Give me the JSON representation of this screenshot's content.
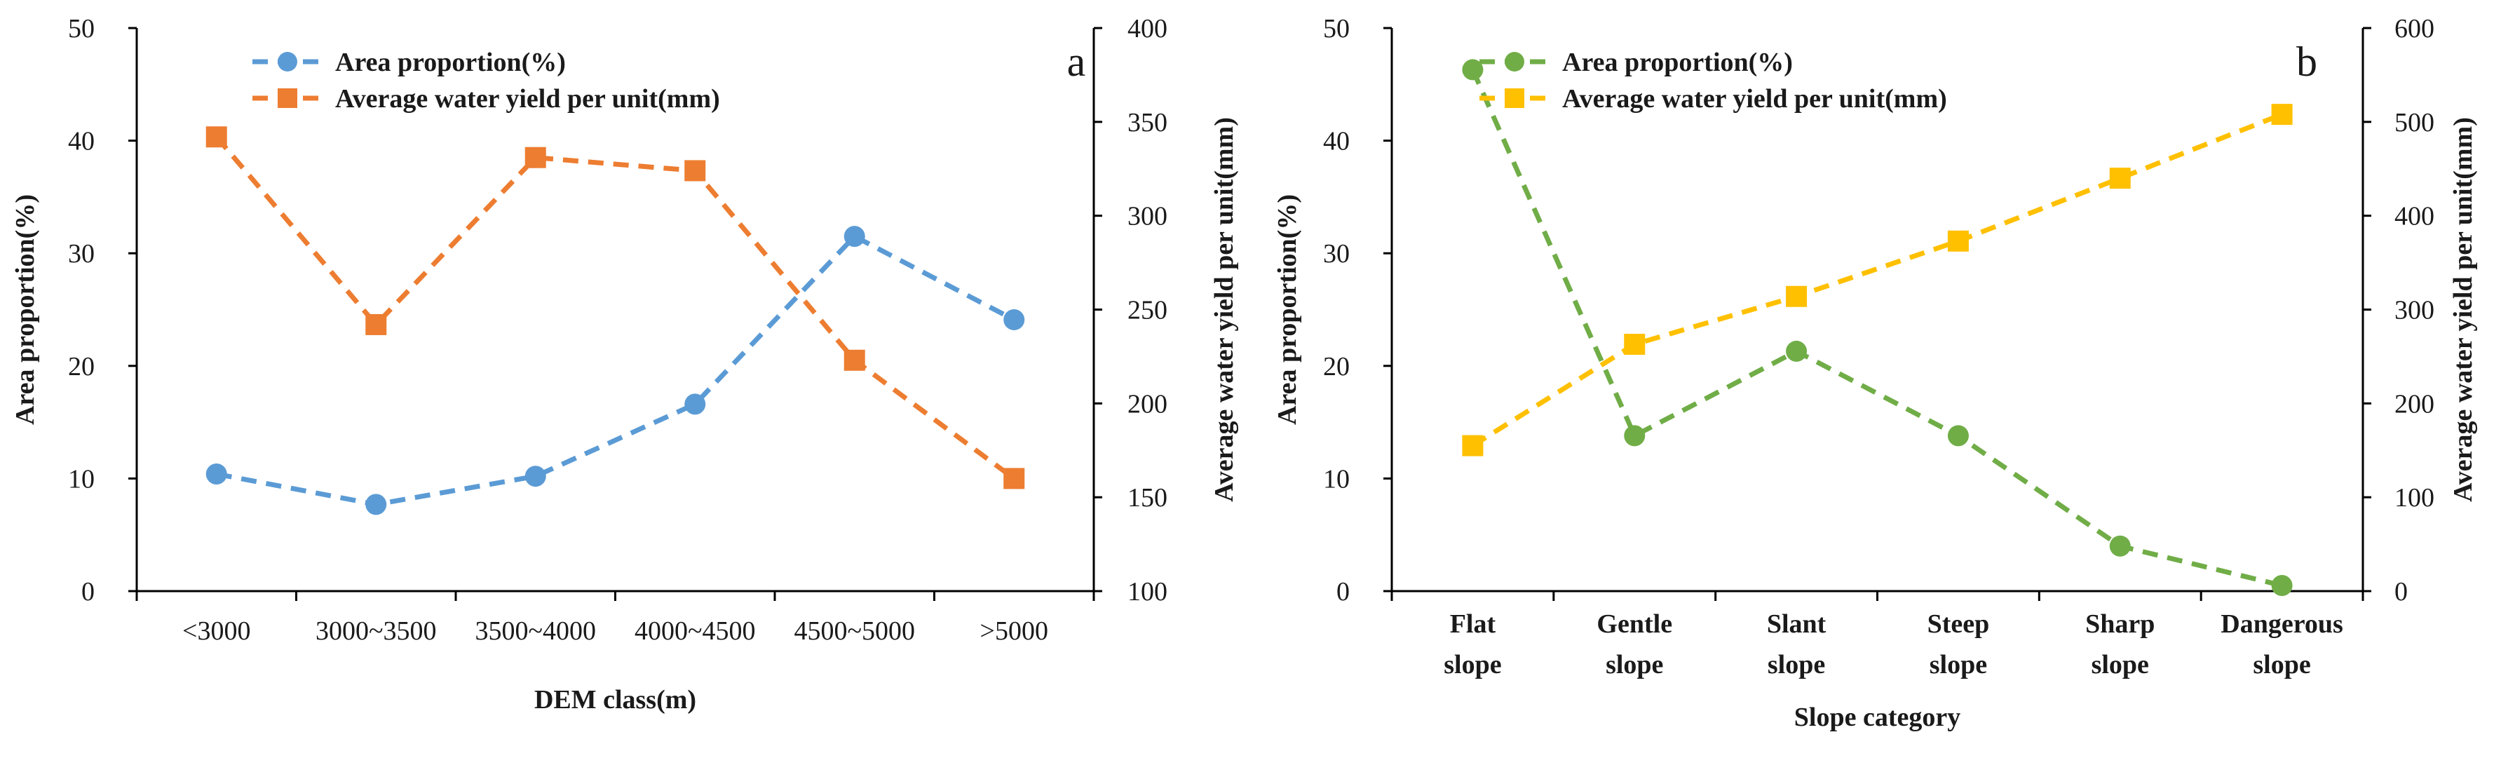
{
  "chart_data": [
    {
      "type": "line",
      "panel_label": "a",
      "xlabel": "DEM class(m)",
      "ylabel_left": "Area proportion(%)",
      "ylabel_right": "Average water yield per unit(mm)",
      "categories": [
        [
          "<3000"
        ],
        [
          "3000~3500"
        ],
        [
          "3500~4000"
        ],
        [
          "4000~4500"
        ],
        [
          "4500~5000"
        ],
        [
          ">5000"
        ]
      ],
      "y_left": {
        "min": 0,
        "max": 50,
        "ticks": [
          0,
          10,
          20,
          30,
          40,
          50
        ]
      },
      "y_right": {
        "min": 100,
        "max": 400,
        "ticks": [
          100,
          150,
          200,
          250,
          300,
          350,
          400
        ]
      },
      "series": [
        {
          "name": "Area proportion(%)",
          "axis": "left",
          "color": "#5B9BD5",
          "marker": "circle",
          "values": [
            10.4,
            7.7,
            10.2,
            16.6,
            31.5,
            24.1
          ]
        },
        {
          "name": "Average water yield per unit(mm)",
          "axis": "right",
          "color": "#ED7D31",
          "marker": "square",
          "values": [
            342,
            242,
            331,
            324,
            223,
            160
          ]
        }
      ],
      "legend": "top-left"
    },
    {
      "type": "line",
      "panel_label": "b",
      "xlabel": "Slope category",
      "ylabel_left": "Area proportion(%)",
      "ylabel_right": "Average water yield per unit(mm)",
      "categories": [
        [
          "Flat",
          "slope"
        ],
        [
          "Gentle",
          "slope"
        ],
        [
          "Slant",
          "slope"
        ],
        [
          "Steep",
          "slope"
        ],
        [
          "Sharp",
          "slope"
        ],
        [
          "Dangerous",
          "slope"
        ]
      ],
      "y_left": {
        "min": 0,
        "max": 50,
        "ticks": [
          0,
          10,
          20,
          30,
          40,
          50
        ]
      },
      "y_right": {
        "min": 0,
        "max": 600,
        "ticks": [
          0,
          100,
          200,
          300,
          400,
          500,
          600
        ]
      },
      "series": [
        {
          "name": "Area proportion(%)",
          "axis": "left",
          "color": "#70AD47",
          "marker": "circle",
          "values": [
            46.3,
            13.8,
            21.3,
            13.8,
            4.0,
            0.5
          ]
        },
        {
          "name": "Average water yield per unit(mm)",
          "axis": "right",
          "color": "#FFC000",
          "marker": "square",
          "values": [
            155,
            263,
            314,
            373,
            440,
            508
          ]
        }
      ],
      "legend": "top-left"
    }
  ]
}
